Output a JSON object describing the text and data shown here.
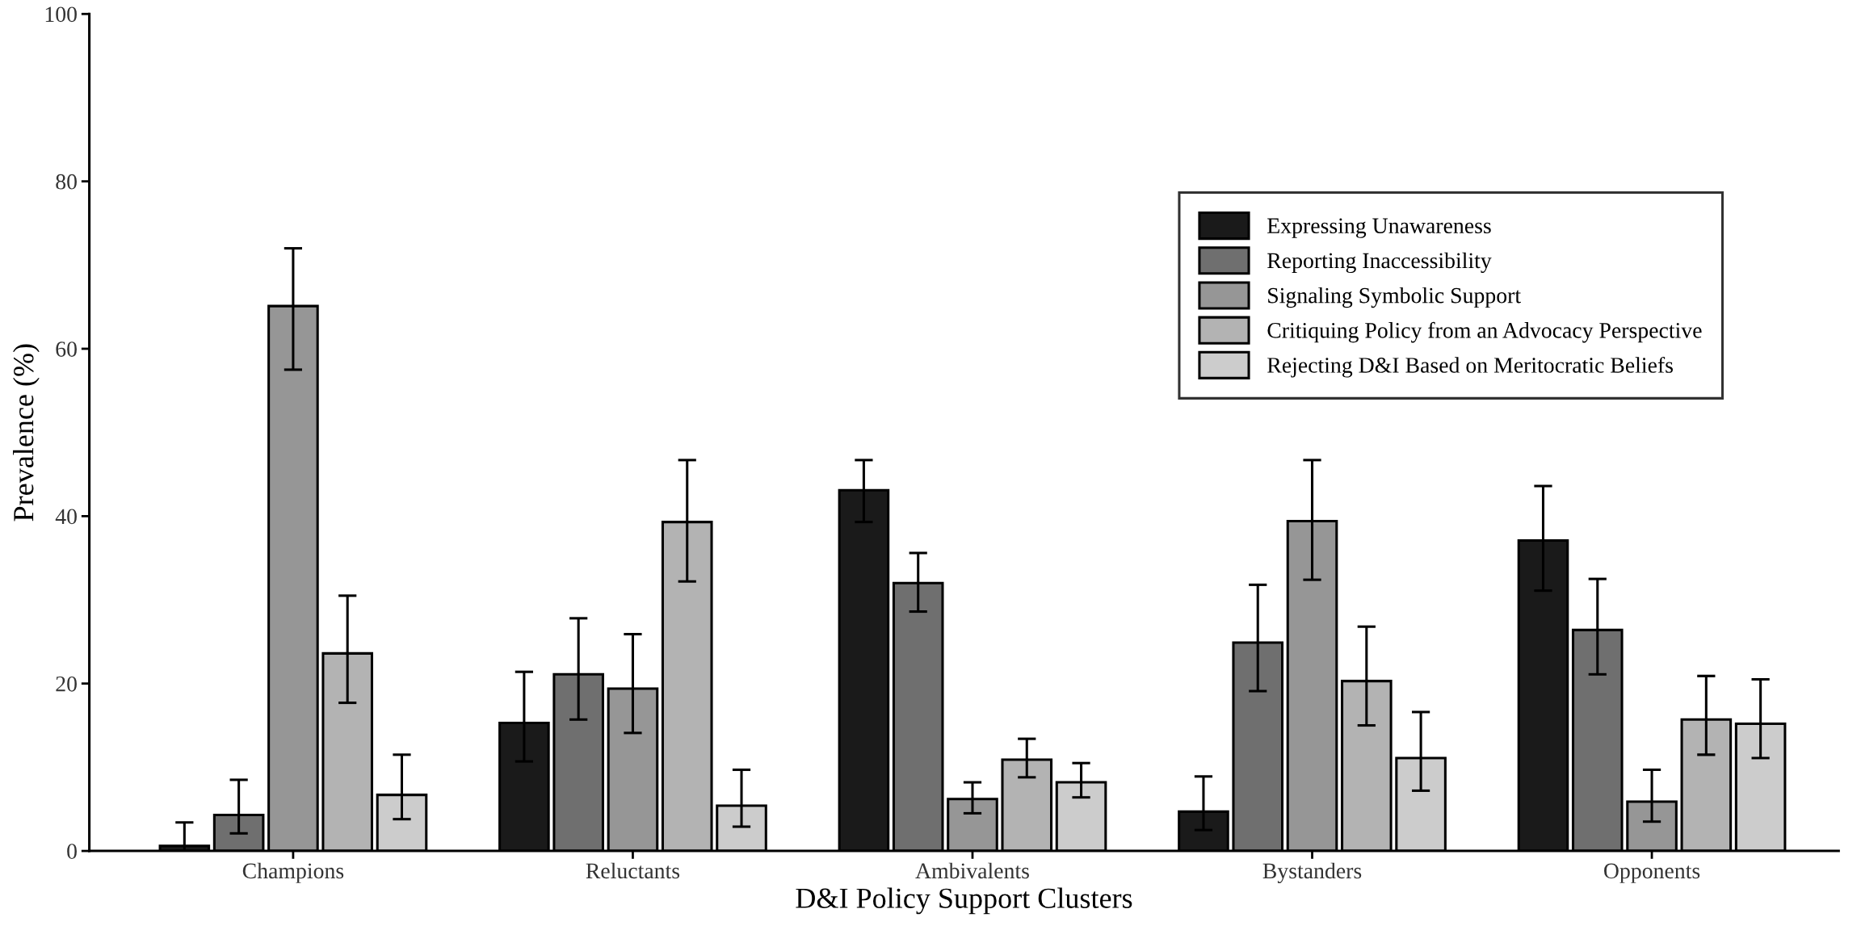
{
  "chart_data": {
    "type": "bar",
    "xlabel": "D&I Policy Support Clusters",
    "ylabel": "Prevalence (%)",
    "categories": [
      "Champions",
      "Reluctants",
      "Ambivalents",
      "Bystanders",
      "Opponents"
    ],
    "ylim": [
      0,
      100
    ],
    "yticks": [
      0,
      20,
      40,
      60,
      80,
      100
    ],
    "grid": false,
    "legend": "top right",
    "series": [
      {
        "name": "Expressing Unawareness",
        "color": "#1a1a1a",
        "values": [
          0.6,
          15.3,
          43.1,
          4.7,
          37.1
        ],
        "errors": [
          [
            0,
            3.4
          ],
          [
            10.7,
            21.4
          ],
          [
            39.3,
            46.7
          ],
          [
            2.5,
            8.9
          ],
          [
            31.1,
            43.6
          ]
        ]
      },
      {
        "name": "Reporting Inaccessibility",
        "color": "#6f6f6f",
        "values": [
          4.3,
          21.1,
          32.0,
          24.9,
          26.4
        ],
        "errors": [
          [
            2.1,
            8.5
          ],
          [
            15.7,
            27.8
          ],
          [
            28.6,
            35.6
          ],
          [
            19.1,
            31.8
          ],
          [
            21.1,
            32.5
          ]
        ]
      },
      {
        "name": "Signaling Symbolic Support",
        "color": "#969696",
        "values": [
          65.1,
          19.4,
          6.2,
          39.4,
          5.9
        ],
        "errors": [
          [
            57.5,
            72.0
          ],
          [
            14.1,
            25.9
          ],
          [
            4.5,
            8.2
          ],
          [
            32.4,
            46.7
          ],
          [
            3.5,
            9.7
          ]
        ]
      },
      {
        "name": "Critiquing Policy from an Advocacy Perspective",
        "color": "#b3b3b3",
        "values": [
          23.6,
          39.3,
          10.9,
          20.3,
          15.7
        ],
        "errors": [
          [
            17.7,
            30.5
          ],
          [
            32.2,
            46.7
          ],
          [
            8.8,
            13.4
          ],
          [
            15.0,
            26.8
          ],
          [
            11.5,
            20.9
          ]
        ]
      },
      {
        "name": "Rejecting D&I Based on Meritocratic Beliefs",
        "color": "#cccccc",
        "values": [
          6.7,
          5.4,
          8.2,
          11.1,
          15.2
        ],
        "errors": [
          [
            3.8,
            11.5
          ],
          [
            2.9,
            9.7
          ],
          [
            6.4,
            10.5
          ],
          [
            7.2,
            16.6
          ],
          [
            11.1,
            20.5
          ]
        ]
      }
    ]
  }
}
